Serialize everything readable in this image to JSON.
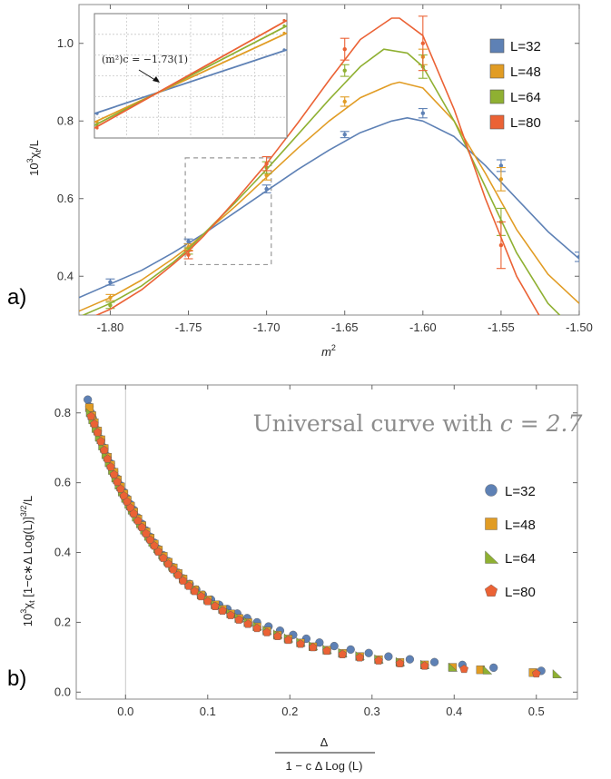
{
  "colors": {
    "L32": "#5e81b5",
    "L48": "#e19c24",
    "L64": "#8fb032",
    "L80": "#eb6235"
  },
  "panel_labels": {
    "a": "a)",
    "b": "b)"
  },
  "chart_data": [
    {
      "type": "line",
      "panel": "a",
      "xlabel": "m",
      "xlabel_sup": "2",
      "ylabel": "10",
      "ylabel_sup": "3",
      "ylabel_rest": "χ",
      "ylabel_sub": "t",
      "ylabel_tail": "/L",
      "xlim": [
        -1.82,
        -1.5
      ],
      "ylim": [
        0.3,
        1.1
      ],
      "xticks": [
        -1.8,
        -1.75,
        -1.7,
        -1.65,
        -1.6,
        -1.55,
        -1.5
      ],
      "xtick_labels": [
        "-1.80",
        "-1.75",
        "-1.70",
        "-1.65",
        "-1.60",
        "-1.55",
        "-1.50"
      ],
      "yticks": [
        0.4,
        0.6,
        0.8,
        1.0
      ],
      "ytick_labels": [
        "0.4",
        "0.6",
        "0.8",
        "1.0"
      ],
      "legend": [
        "L=32",
        "L=48",
        "L=64",
        "L=80"
      ],
      "legend_position": "right",
      "zoom_box": {
        "x": [
          -1.752,
          -1.697
        ],
        "y": [
          0.43,
          0.705
        ]
      },
      "inset_annotation": "(m²)c = −1.73(1)",
      "series": [
        {
          "name": "L=32",
          "color": "#5e81b5",
          "curve": {
            "x": [
              -1.82,
              -1.8,
              -1.78,
              -1.76,
              -1.75,
              -1.74,
              -1.72,
              -1.7,
              -1.68,
              -1.66,
              -1.64,
              -1.62,
              -1.61,
              -1.6,
              -1.58,
              -1.56,
              -1.54,
              -1.52,
              -1.5
            ],
            "y": [
              0.345,
              0.38,
              0.415,
              0.46,
              0.485,
              0.51,
              0.565,
              0.62,
              0.675,
              0.725,
              0.77,
              0.8,
              0.808,
              0.8,
              0.76,
              0.685,
              0.6,
              0.515,
              0.445
            ]
          },
          "points": {
            "x": [
              -1.8,
              -1.75,
              -1.7,
              -1.65,
              -1.6,
              -1.55,
              -1.5
            ],
            "y": [
              0.385,
              0.49,
              0.625,
              0.765,
              0.82,
              0.685,
              0.45
            ],
            "err": [
              0.008,
              0.006,
              0.01,
              0.008,
              0.012,
              0.015,
              0.012
            ]
          }
        },
        {
          "name": "L=48",
          "color": "#e19c24",
          "curve": {
            "x": [
              -1.82,
              -1.8,
              -1.78,
              -1.76,
              -1.75,
              -1.74,
              -1.72,
              -1.7,
              -1.68,
              -1.66,
              -1.64,
              -1.62,
              -1.615,
              -1.6,
              -1.58,
              -1.56,
              -1.54,
              -1.52,
              -1.5
            ],
            "y": [
              0.31,
              0.345,
              0.39,
              0.445,
              0.475,
              0.51,
              0.58,
              0.655,
              0.73,
              0.8,
              0.86,
              0.895,
              0.9,
              0.885,
              0.8,
              0.665,
              0.52,
              0.405,
              0.33
            ]
          },
          "points": {
            "x": [
              -1.8,
              -1.75,
              -1.7,
              -1.65,
              -1.6,
              -1.55
            ],
            "y": [
              0.345,
              0.475,
              0.66,
              0.85,
              0.965,
              0.65
            ],
            "err": [
              0.008,
              0.008,
              0.012,
              0.012,
              0.02,
              0.03
            ]
          }
        },
        {
          "name": "L=64",
          "color": "#8fb032",
          "curve": {
            "x": [
              -1.82,
              -1.8,
              -1.78,
              -1.76,
              -1.75,
              -1.74,
              -1.72,
              -1.7,
              -1.68,
              -1.66,
              -1.64,
              -1.625,
              -1.61,
              -1.6,
              -1.58,
              -1.56,
              -1.54,
              -1.52,
              -1.5
            ],
            "y": [
              0.295,
              0.33,
              0.375,
              0.435,
              0.47,
              0.51,
              0.59,
              0.675,
              0.765,
              0.855,
              0.94,
              0.985,
              0.975,
              0.94,
              0.8,
              0.63,
              0.46,
              0.33,
              0.25
            ]
          },
          "points": {
            "x": [
              -1.8,
              -1.75,
              -1.7,
              -1.65,
              -1.6,
              -1.55
            ],
            "y": [
              0.325,
              0.465,
              0.68,
              0.93,
              0.94,
              0.54
            ],
            "err": [
              0.008,
              0.008,
              0.015,
              0.015,
              0.03,
              0.035
            ]
          }
        },
        {
          "name": "L=80",
          "color": "#eb6235",
          "curve": {
            "x": [
              -1.82,
              -1.8,
              -1.78,
              -1.76,
              -1.75,
              -1.74,
              -1.72,
              -1.7,
              -1.68,
              -1.66,
              -1.64,
              -1.62,
              -1.615,
              -1.6,
              -1.58,
              -1.56,
              -1.54,
              -1.52,
              -1.5
            ],
            "y": [
              0.28,
              0.315,
              0.365,
              0.43,
              0.465,
              0.505,
              0.595,
              0.69,
              0.795,
              0.905,
              1.01,
              1.065,
              1.065,
              1.02,
              0.83,
              0.6,
              0.4,
              0.26,
              0.18
            ]
          },
          "points": {
            "x": [
              -1.75,
              -1.7,
              -1.65,
              -1.6,
              -1.55
            ],
            "y": [
              0.455,
              0.69,
              0.985,
              1.0,
              0.48
            ],
            "err": [
              0.01,
              0.018,
              0.028,
              0.07,
              0.06
            ]
          }
        }
      ]
    },
    {
      "type": "line",
      "panel": "a-inset",
      "xlim": [
        -1.752,
        -1.697
      ],
      "ylim": [
        0.43,
        0.705
      ],
      "grid": true,
      "series": [
        {
          "name": "L=32",
          "color": "#5e81b5",
          "x": [
            -1.752,
            -1.697
          ],
          "y": [
            0.484,
            0.625
          ]
        },
        {
          "name": "L=48",
          "color": "#e19c24",
          "x": [
            -1.752,
            -1.697
          ],
          "y": [
            0.465,
            0.662
          ]
        },
        {
          "name": "L=64",
          "color": "#8fb032",
          "x": [
            -1.752,
            -1.697
          ],
          "y": [
            0.458,
            0.678
          ]
        },
        {
          "name": "L=80",
          "color": "#eb6235",
          "x": [
            -1.752,
            -1.697
          ],
          "y": [
            0.452,
            0.69
          ]
        }
      ]
    },
    {
      "type": "scatter",
      "panel": "b",
      "title": "Universal curve with c = 2.7",
      "title_rest": "Universal curve with ",
      "title_math": "c = 2.7",
      "xlabel_numerator": "Δ",
      "xlabel_denominator": "1 − c Δ Log (L)",
      "ylabel": "10",
      "ylabel_sup": "3",
      "ylabel_rest": "χ",
      "ylabel_sub": "t",
      "ylabel_tail": " [1−c∗Δ Log(L)]",
      "ylabel_sup2": "3/2",
      "ylabel_end": "/L",
      "xlim": [
        -0.06,
        0.55
      ],
      "ylim": [
        -0.02,
        0.88
      ],
      "xticks": [
        0.0,
        0.1,
        0.2,
        0.3,
        0.4,
        0.5
      ],
      "xtick_labels": [
        "0.0",
        "0.1",
        "0.2",
        "0.3",
        "0.4",
        "0.5"
      ],
      "yticks": [
        0.0,
        0.2,
        0.4,
        0.6,
        0.8
      ],
      "ytick_labels": [
        "0.0",
        "0.2",
        "0.4",
        "0.6",
        "0.8"
      ],
      "legend": [
        "L=32",
        "L=48",
        "L=64",
        "L=80"
      ],
      "legend_position": "right",
      "series": [
        {
          "name": "L=32",
          "color": "#5e81b5",
          "marker": "circle",
          "x": [
            -0.046,
            -0.044,
            -0.042,
            -0.04,
            -0.038,
            -0.034,
            -0.03,
            -0.026,
            -0.022,
            -0.018,
            -0.014,
            -0.01,
            -0.006,
            -0.002,
            0.002,
            0.006,
            0.01,
            0.015,
            0.02,
            0.025,
            0.03,
            0.035,
            0.04,
            0.046,
            0.052,
            0.058,
            0.064,
            0.07,
            0.078,
            0.086,
            0.094,
            0.104,
            0.114,
            0.124,
            0.136,
            0.148,
            0.16,
            0.174,
            0.188,
            0.204,
            0.22,
            0.236,
            0.254,
            0.274,
            0.296,
            0.32,
            0.346,
            0.376,
            0.41,
            0.448,
            0.506
          ],
          "y": [
            0.838,
            0.818,
            0.8,
            0.785,
            0.772,
            0.75,
            0.725,
            0.7,
            0.675,
            0.655,
            0.632,
            0.612,
            0.592,
            0.573,
            0.555,
            0.538,
            0.522,
            0.5,
            0.482,
            0.463,
            0.445,
            0.428,
            0.41,
            0.392,
            0.375,
            0.358,
            0.342,
            0.326,
            0.31,
            0.294,
            0.279,
            0.265,
            0.25,
            0.238,
            0.225,
            0.212,
            0.2,
            0.188,
            0.176,
            0.164,
            0.153,
            0.142,
            0.132,
            0.122,
            0.112,
            0.102,
            0.094,
            0.086,
            0.078,
            0.07,
            0.061
          ]
        },
        {
          "name": "L=48",
          "color": "#e19c24",
          "marker": "square",
          "x": [
            -0.044,
            -0.041,
            -0.038,
            -0.034,
            -0.03,
            -0.026,
            -0.022,
            -0.018,
            -0.014,
            -0.01,
            -0.006,
            -0.002,
            0.002,
            0.006,
            0.01,
            0.015,
            0.02,
            0.025,
            0.03,
            0.035,
            0.04,
            0.046,
            0.052,
            0.058,
            0.064,
            0.07,
            0.077,
            0.084,
            0.092,
            0.1,
            0.109,
            0.118,
            0.128,
            0.138,
            0.149,
            0.16,
            0.172,
            0.185,
            0.198,
            0.213,
            0.228,
            0.245,
            0.264,
            0.285,
            0.308,
            0.334,
            0.364,
            0.398,
            0.432,
            0.496
          ],
          "y": [
            0.815,
            0.792,
            0.772,
            0.748,
            0.723,
            0.698,
            0.673,
            0.651,
            0.63,
            0.608,
            0.588,
            0.568,
            0.55,
            0.533,
            0.516,
            0.496,
            0.477,
            0.459,
            0.441,
            0.424,
            0.407,
            0.389,
            0.372,
            0.356,
            0.34,
            0.324,
            0.308,
            0.293,
            0.278,
            0.264,
            0.25,
            0.237,
            0.224,
            0.211,
            0.199,
            0.187,
            0.175,
            0.163,
            0.152,
            0.141,
            0.13,
            0.12,
            0.111,
            0.102,
            0.093,
            0.085,
            0.078,
            0.071,
            0.064,
            0.056
          ]
        },
        {
          "name": "L=64",
          "color": "#8fb032",
          "marker": "triangle",
          "x": [
            -0.043,
            -0.04,
            -0.036,
            -0.032,
            -0.028,
            -0.024,
            -0.02,
            -0.016,
            -0.012,
            -0.008,
            -0.004,
            0.0,
            0.004,
            0.008,
            0.013,
            0.018,
            0.023,
            0.028,
            0.033,
            0.039,
            0.045,
            0.051,
            0.057,
            0.063,
            0.07,
            0.077,
            0.084,
            0.092,
            0.1,
            0.109,
            0.118,
            0.128,
            0.138,
            0.149,
            0.16,
            0.172,
            0.185,
            0.198,
            0.213,
            0.228,
            0.245,
            0.264,
            0.285,
            0.308,
            0.334,
            0.364,
            0.398,
            0.44,
            0.525
          ],
          "y": [
            0.8,
            0.78,
            0.755,
            0.73,
            0.705,
            0.68,
            0.657,
            0.635,
            0.613,
            0.593,
            0.573,
            0.555,
            0.538,
            0.521,
            0.501,
            0.482,
            0.464,
            0.446,
            0.429,
            0.411,
            0.393,
            0.376,
            0.36,
            0.344,
            0.328,
            0.312,
            0.297,
            0.282,
            0.267,
            0.253,
            0.24,
            0.227,
            0.214,
            0.202,
            0.19,
            0.178,
            0.166,
            0.155,
            0.144,
            0.133,
            0.123,
            0.113,
            0.104,
            0.095,
            0.087,
            0.079,
            0.071,
            0.063,
            0.052
          ]
        },
        {
          "name": "L=80",
          "color": "#eb6235",
          "marker": "pentagon",
          "x": [
            -0.042,
            -0.038,
            -0.034,
            -0.03,
            -0.026,
            -0.022,
            -0.018,
            -0.014,
            -0.01,
            -0.006,
            -0.002,
            0.002,
            0.006,
            0.01,
            0.015,
            0.02,
            0.025,
            0.03,
            0.035,
            0.04,
            0.046,
            0.052,
            0.058,
            0.064,
            0.07,
            0.077,
            0.084,
            0.092,
            0.1,
            0.109,
            0.118,
            0.128,
            0.138,
            0.149,
            0.16,
            0.172,
            0.185,
            0.198,
            0.213,
            0.228,
            0.245,
            0.264,
            0.285,
            0.308,
            0.334,
            0.364,
            0.412,
            0.5
          ],
          "y": [
            0.79,
            0.768,
            0.744,
            0.718,
            0.693,
            0.668,
            0.645,
            0.623,
            0.602,
            0.582,
            0.562,
            0.545,
            0.528,
            0.511,
            0.491,
            0.472,
            0.454,
            0.436,
            0.419,
            0.402,
            0.384,
            0.367,
            0.351,
            0.335,
            0.319,
            0.304,
            0.289,
            0.274,
            0.26,
            0.246,
            0.233,
            0.22,
            0.207,
            0.195,
            0.183,
            0.171,
            0.16,
            0.149,
            0.138,
            0.128,
            0.118,
            0.108,
            0.099,
            0.09,
            0.082,
            0.075,
            0.066,
            0.053
          ]
        }
      ]
    }
  ]
}
